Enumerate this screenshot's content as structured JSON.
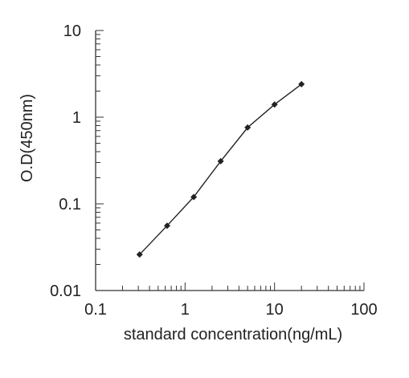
{
  "chart_data": {
    "type": "line",
    "title": "",
    "xlabel": "standard concentration(ng/mL)",
    "ylabel": "O.D(450nm)",
    "x_scale": "log",
    "y_scale": "log",
    "xlim": [
      0.1,
      100
    ],
    "ylim": [
      0.01,
      10
    ],
    "x_ticks": [
      "0.1",
      "1",
      "10",
      "100"
    ],
    "y_ticks": [
      "0.01",
      "0.1",
      "1",
      "10"
    ],
    "grid": false,
    "legend": "none",
    "series": [
      {
        "x": [
          0.31,
          0.63,
          1.25,
          2.5,
          5,
          10,
          20
        ],
        "y": [
          0.026,
          0.056,
          0.12,
          0.31,
          0.76,
          1.4,
          2.4
        ]
      }
    ],
    "colors": {
      "line": "#222222",
      "axis": "#333333"
    }
  }
}
